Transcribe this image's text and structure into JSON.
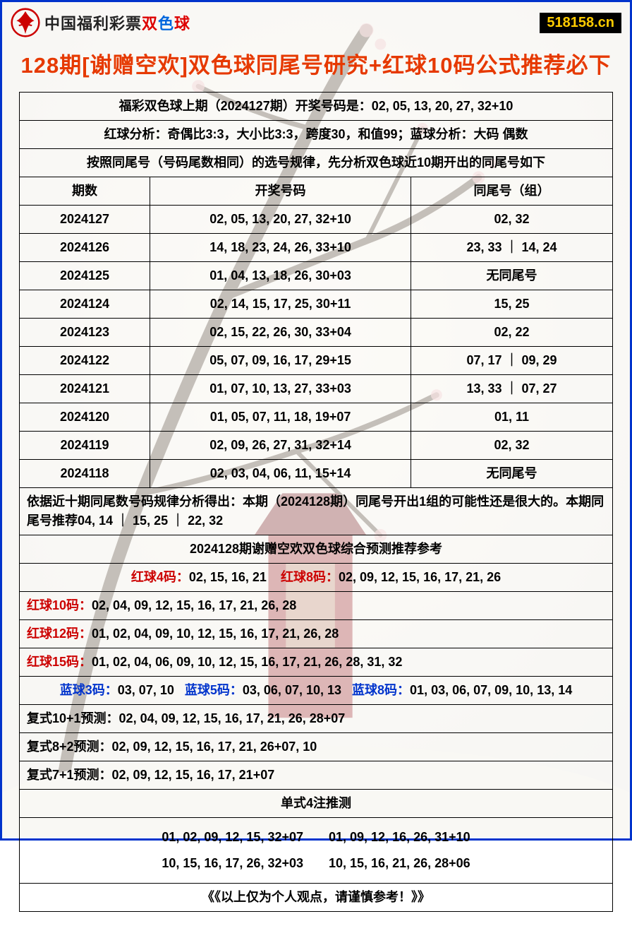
{
  "header": {
    "brand_prefix": "中国福利彩票",
    "brand_suffix1": "双",
    "brand_suffix2": "色",
    "brand_suffix3": "球",
    "site_badge": "518158.cn"
  },
  "title": "128期[谢赠空欢]双色球同尾号研究+红球10码公式推荐必下",
  "info_rows": [
    "福彩双色球上期（2024127期）开奖号码是：02, 05, 13, 20, 27, 32+10",
    "红球分析：奇偶比3:3，大小比3:3，跨度30，和值99；蓝球分析：大码 偶数",
    "按照同尾号（号码尾数相同）的选号规律，先分析双色球近10期开出的同尾号如下"
  ],
  "history_header": {
    "col1": "期数",
    "col2": "开奖号码",
    "col3": "同尾号（组）"
  },
  "history": [
    {
      "period": "2024127",
      "numbers": "02, 05, 13, 20, 27, 32+10",
      "tail": "02, 32"
    },
    {
      "period": "2024126",
      "numbers": "14, 18, 23, 24, 26, 33+10",
      "tail": "23, 33 ｜ 14, 24"
    },
    {
      "period": "2024125",
      "numbers": "01, 04, 13, 18, 26, 30+03",
      "tail": "无同尾号"
    },
    {
      "period": "2024124",
      "numbers": "02, 14, 15, 17, 25, 30+11",
      "tail": "15, 25"
    },
    {
      "period": "2024123",
      "numbers": "02, 15, 22, 26, 30, 33+04",
      "tail": "02, 22"
    },
    {
      "period": "2024122",
      "numbers": "05, 07, 09, 16, 17, 29+15",
      "tail": "07, 17 ｜ 09, 29"
    },
    {
      "period": "2024121",
      "numbers": "01, 07, 10, 13, 27, 33+03",
      "tail": "13, 33 ｜ 07, 27"
    },
    {
      "period": "2024120",
      "numbers": "01, 05, 07, 11, 18, 19+07",
      "tail": "01, 11"
    },
    {
      "period": "2024119",
      "numbers": "02, 09, 26, 27, 31, 32+14",
      "tail": "02, 32"
    },
    {
      "period": "2024118",
      "numbers": "02, 03, 04, 06, 11, 15+14",
      "tail": "无同尾号"
    }
  ],
  "analysis_text": "依据近十期同尾数号码规律分析得出：本期（2024128期）同尾号开出1组的可能性还是很大的。本期同尾号推荐04, 14 ｜ 15, 25 ｜ 22, 32",
  "prediction_title": "2024128期谢赠空欢双色球综合预测推荐参考",
  "red_line1": {
    "label4": "红球4码：",
    "val4": "02, 15, 16, 21",
    "label8": "红球8码：",
    "val8": "02, 09, 12, 15, 16, 17, 21, 26"
  },
  "red10": {
    "label": "红球10码：",
    "val": "02, 04, 09, 12, 15, 16, 17, 21, 26, 28"
  },
  "red12": {
    "label": "红球12码：",
    "val": "01, 02, 04, 09, 10, 12, 15, 16, 17, 21, 26, 28"
  },
  "red15": {
    "label": "红球15码：",
    "val": "01, 02, 04, 06, 09, 10, 12, 15, 16, 17, 21, 26, 28, 31, 32"
  },
  "blue_line": {
    "label3": "蓝球3码：",
    "val3": "03, 07, 10",
    "label5": "蓝球5码：",
    "val5": "03, 06, 07, 10, 13",
    "label8": "蓝球8码：",
    "val8": "01, 03, 06, 07, 09, 10, 13, 14"
  },
  "fushi": [
    {
      "label": "复式10+1预测：",
      "val": "02, 04, 09, 12, 15, 16, 17, 21, 26, 28+07"
    },
    {
      "label": "复式8+2预测：",
      "val": "02, 09, 12, 15, 16, 17, 21, 26+07, 10"
    },
    {
      "label": "复式7+1预测：",
      "val": "02, 09, 12, 15, 16, 17, 21+07"
    }
  ],
  "danshi_title": "单式4注推测",
  "danshi_lines": [
    "01, 02, 09, 12, 15, 32+07　　01, 09, 12, 16, 26, 31+10",
    "10, 15, 16, 17, 26, 32+03　　10, 15, 16, 21, 26, 28+06"
  ],
  "disclaimer": "《《以上仅为个人观点，请谨慎参考！》》",
  "colors": {
    "border": "#0033cc",
    "title": "#e63900",
    "red": "#cc0000",
    "blue": "#0033cc",
    "badge_bg": "#000000",
    "badge_fg": "#ffcc00"
  }
}
